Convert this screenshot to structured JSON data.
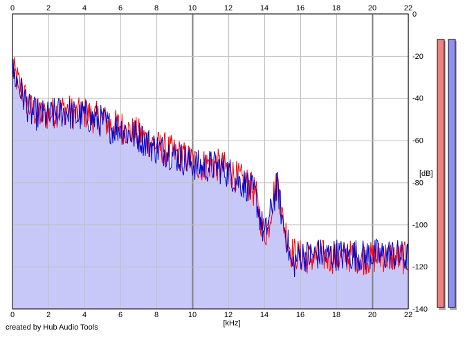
{
  "footer": {
    "credit": "created by Hub Audio Tools"
  },
  "chart_data": {
    "type": "line",
    "title": "",
    "xlabel": "[kHz]",
    "ylabel": "[dB]",
    "xlim": [
      0,
      22
    ],
    "ylim": [
      -140,
      0
    ],
    "x_ticks": [
      "0",
      "2",
      "4",
      "6",
      "8",
      "10",
      "12",
      "14",
      "16",
      "18",
      "20",
      "22"
    ],
    "y_ticks": [
      "0",
      "-20",
      "-40",
      "-60",
      "-80",
      "-100",
      "-120",
      "-140"
    ],
    "grid": true,
    "fill": "below-blue-series",
    "colors": {
      "left_channel": "#ff0000",
      "right_channel": "#0000cc",
      "fill": "#c8c8f8",
      "grid": "#c0c0c0",
      "grid_major": "#808080",
      "meter_left": "#f08080",
      "meter_right": "#9090f0"
    },
    "x": [
      0,
      0.5,
      1,
      1.5,
      2,
      2.5,
      3,
      3.5,
      4,
      4.5,
      5,
      5.5,
      6,
      6.5,
      7,
      7.5,
      8,
      8.5,
      9,
      9.5,
      10,
      10.5,
      11,
      11.5,
      12,
      12.5,
      13,
      13.5,
      14,
      14.25,
      14.5,
      14.75,
      15,
      15.25,
      15.5,
      16,
      16.5,
      17,
      17.5,
      18,
      18.5,
      19,
      19.5,
      20,
      20.5,
      21,
      21.5,
      22
    ],
    "series": [
      {
        "values": [
          -26,
          -36,
          -45,
          -48,
          -48,
          -46,
          -45,
          -48,
          -47,
          -49,
          -50,
          -53,
          -53,
          -56,
          -57,
          -60,
          -63,
          -64,
          -66,
          -68,
          -70,
          -72,
          -71,
          -72,
          -74,
          -78,
          -80,
          -85,
          -105,
          -100,
          -86,
          -80,
          -97,
          -105,
          -113,
          -115,
          -116,
          -115,
          -115,
          -116,
          -115,
          -115,
          -116,
          -116,
          -115,
          -115,
          -116,
          -116
        ]
      },
      {
        "values": [
          -27,
          -37,
          -47,
          -48,
          -49,
          -47,
          -46,
          -49,
          -48,
          -50,
          -51,
          -54,
          -54,
          -57,
          -58,
          -61,
          -64,
          -65,
          -67,
          -69,
          -71,
          -73,
          -72,
          -73,
          -75,
          -79,
          -81,
          -86,
          -106,
          -99,
          -88,
          -82,
          -98,
          -106,
          -120,
          -114,
          -115,
          -114,
          -115,
          -114,
          -115,
          -114,
          -115,
          -114,
          -115,
          -114,
          -115,
          -116
        ]
      }
    ],
    "meters": [
      {
        "channel": "left",
        "level": 1.0
      },
      {
        "channel": "right",
        "level": 1.0
      }
    ]
  }
}
